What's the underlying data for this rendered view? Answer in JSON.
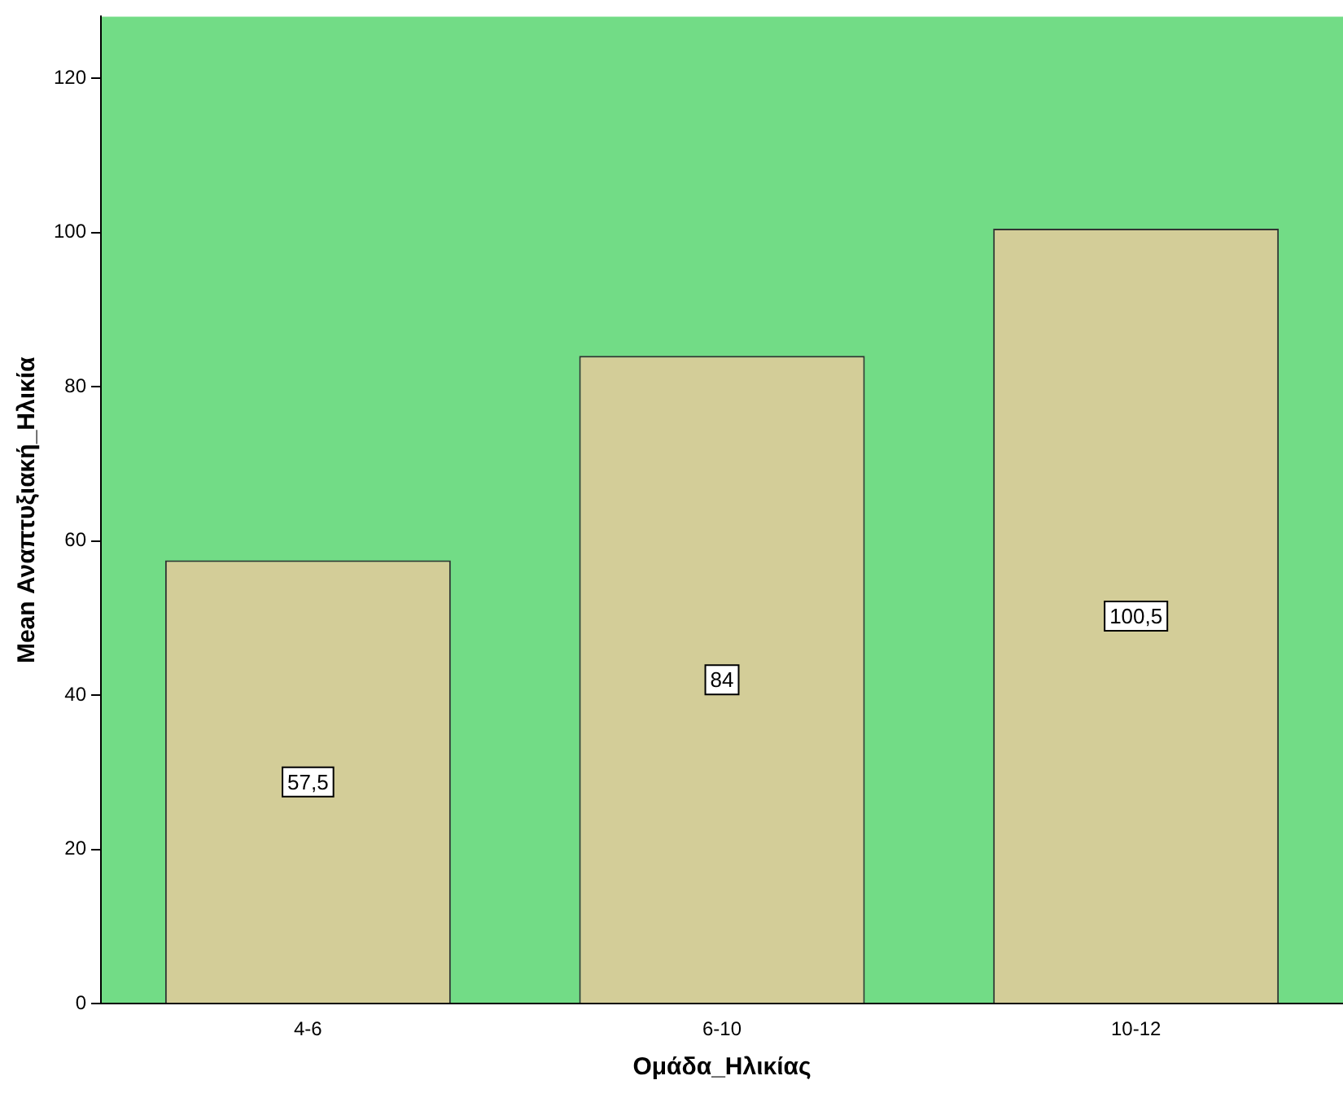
{
  "chart_data": {
    "type": "bar",
    "xlabel": "Ομάδα_Ηλικίας",
    "ylabel": "Mean Αναπτυξιακή_Ηλικία",
    "categories": [
      "4-6",
      "6-10",
      "10-12"
    ],
    "values": [
      57.5,
      84,
      100.5
    ],
    "value_labels": [
      "57,5",
      "84",
      "100,5"
    ],
    "color": "#d3cd98",
    "ylim": [
      0,
      128
    ],
    "yticks": [
      0,
      20,
      40,
      60,
      80,
      100,
      120
    ],
    "grid": false,
    "legend": false
  }
}
